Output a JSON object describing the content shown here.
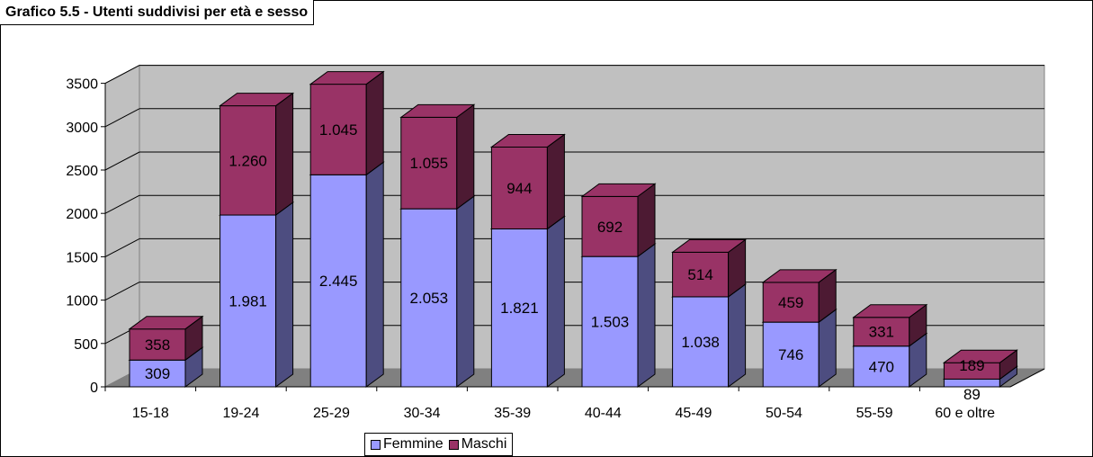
{
  "chart_data": {
    "type": "bar",
    "stacked": true,
    "three_d": true,
    "title": "Grafico 5.5 - Utenti suddivisi per età e sesso",
    "categories": [
      "15-18",
      "19-24",
      "25-29",
      "30-34",
      "35-39",
      "40-44",
      "45-49",
      "50-54",
      "55-59",
      "60 e oltre"
    ],
    "series": [
      {
        "name": "Femmine",
        "values": [
          309,
          1981,
          2445,
          2053,
          1821,
          1503,
          1038,
          746,
          470,
          89
        ],
        "labels": [
          "309",
          "1.981",
          "2.445",
          "2.053",
          "1.821",
          "1.503",
          "1.038",
          "746",
          "470",
          "89"
        ],
        "color": "#9999ff"
      },
      {
        "name": "Maschi",
        "values": [
          358,
          1260,
          1045,
          1055,
          944,
          692,
          514,
          459,
          331,
          189
        ],
        "labels": [
          "358",
          "1.260",
          "1.045",
          "1.055",
          "944",
          "692",
          "514",
          "459",
          "331",
          "189"
        ],
        "color": "#993366"
      }
    ],
    "yticks": [
      0,
      500,
      1000,
      1500,
      2000,
      2500,
      3000,
      3500
    ],
    "ylim": [
      0,
      3500
    ],
    "grid": true,
    "legend_position": "bottom"
  }
}
